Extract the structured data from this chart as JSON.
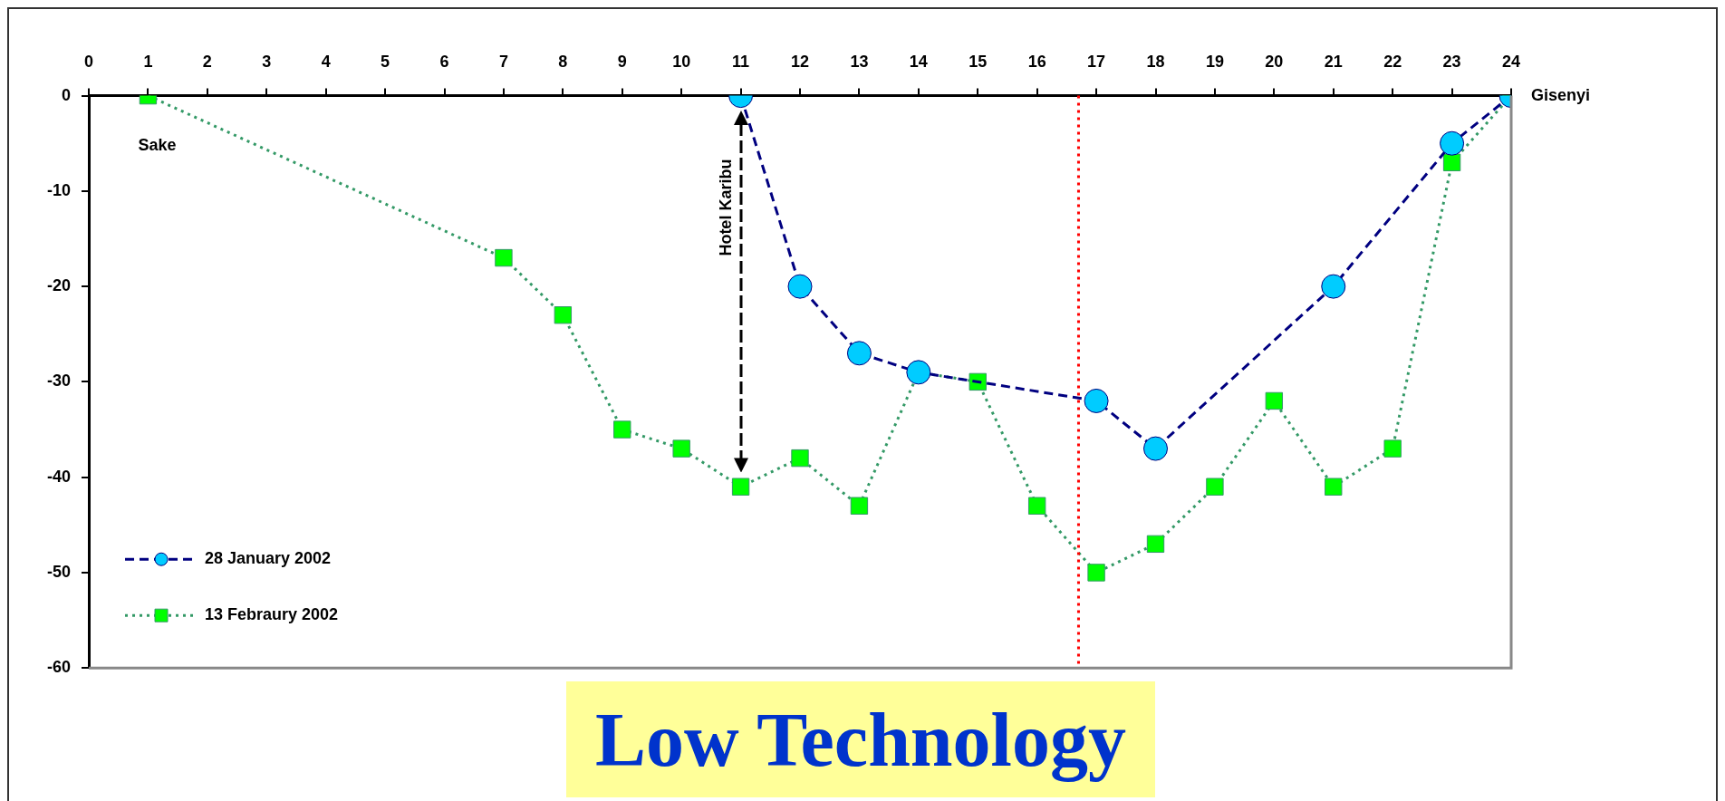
{
  "chart_data": {
    "type": "line",
    "title": "Low Technology",
    "xlim": [
      0,
      24
    ],
    "xticks": [
      0,
      1,
      2,
      3,
      4,
      5,
      6,
      7,
      8,
      9,
      10,
      11,
      12,
      13,
      14,
      15,
      16,
      17,
      18,
      19,
      20,
      21,
      22,
      23,
      24
    ],
    "ylim": [
      -60,
      0
    ],
    "yticks": [
      0,
      -10,
      -20,
      -30,
      -40,
      -50,
      -60
    ],
    "grid": false,
    "legend": "bottom left",
    "series": [
      {
        "name": "28 January 2002",
        "color": "#000080",
        "marker": "circle",
        "line_style": "dashed",
        "x": [
          11,
          12,
          13,
          14,
          17,
          18,
          21,
          23,
          24
        ],
        "values": [
          0,
          -20,
          -27,
          -29,
          -32,
          -37,
          -20,
          -5,
          0
        ]
      },
      {
        "name": "13 Febraury 2002",
        "color": "#339966",
        "marker": "square",
        "line_style": "dotted",
        "x": [
          1,
          7,
          8,
          9,
          10,
          11,
          12,
          13,
          14,
          15,
          16,
          17,
          18,
          19,
          20,
          21,
          22,
          23,
          24
        ],
        "values": [
          0,
          -17,
          -23,
          -35,
          -37,
          -41,
          -38,
          -43,
          -29,
          -30,
          -43,
          -50,
          -47,
          -41,
          -32,
          -41,
          -37,
          -7,
          0
        ]
      }
    ],
    "ref_lines": [
      {
        "axis": "x",
        "value": 16.7,
        "color": "#ff0000",
        "line_style": "dotted"
      }
    ],
    "annotations": [
      "Sake",
      {
        "text": "Gisenyi",
        "x": 24,
        "y": 0
      },
      "Hotel Karibu"
    ]
  }
}
